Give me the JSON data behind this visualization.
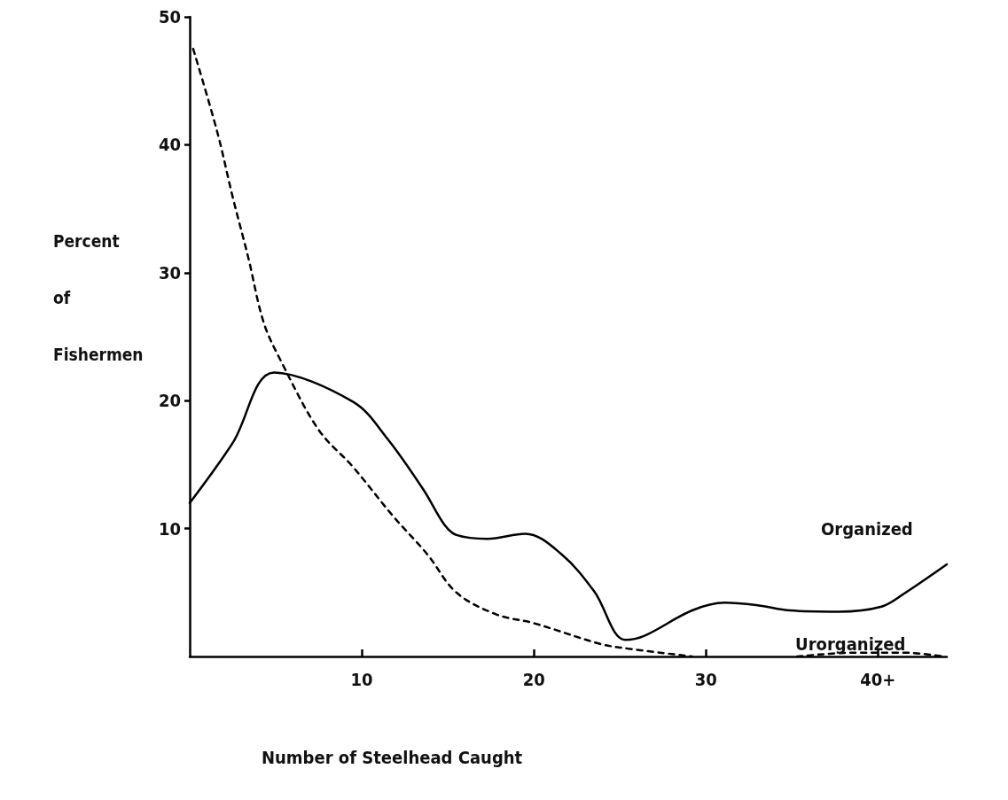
{
  "chart_data": {
    "type": "line",
    "xlabel": "Number of Steelhead Caught",
    "ylabel": "Percent\nof\nFishermen",
    "xlim": [
      0,
      44
    ],
    "xticks": [
      10,
      20,
      30,
      {
        "value": 40,
        "label": "40+"
      }
    ],
    "ylim": [
      0,
      50
    ],
    "yticks": [
      10,
      20,
      30,
      40,
      50
    ],
    "grid": false,
    "legend": false,
    "marker": "none",
    "series": [
      {
        "name": "Organized",
        "color": "#000000",
        "line_style": "solid",
        "x": [
          0,
          2.5,
          4.9,
          9.5,
          11.5,
          13.6,
          14.8,
          15.5,
          17.3,
          19.5,
          21.6,
          23.5,
          25.3,
          26.4,
          29.2,
          31.1,
          33,
          34.9,
          37.7,
          40.2,
          41.5,
          44
        ],
        "values": [
          12,
          16.7,
          22.2,
          19.9,
          17,
          13,
          10.3,
          9.5,
          9.2,
          9.6,
          8,
          5.1,
          1.3,
          1.6,
          3.6,
          4.2,
          4,
          3.6,
          3.5,
          3.9,
          4.9,
          7.2
        ]
      },
      {
        "name": "Urorganized",
        "color": "#000000",
        "line_style": "dashed",
        "x": [
          0.2,
          1.6,
          2.5,
          3.4,
          4.3,
          5.3,
          7.5,
          9.5,
          11.8,
          13.8,
          15.5,
          17.8,
          20,
          23.8,
          25,
          29.2,
          32,
          35.3,
          38.7,
          41.5,
          43.8
        ],
        "values": [
          47.5,
          41,
          35.9,
          31.2,
          26.1,
          23.1,
          17.7,
          14.8,
          11,
          8,
          5,
          3.3,
          2.6,
          1,
          0.7,
          0,
          null,
          0,
          0.3,
          0.3,
          0
        ]
      }
    ]
  }
}
